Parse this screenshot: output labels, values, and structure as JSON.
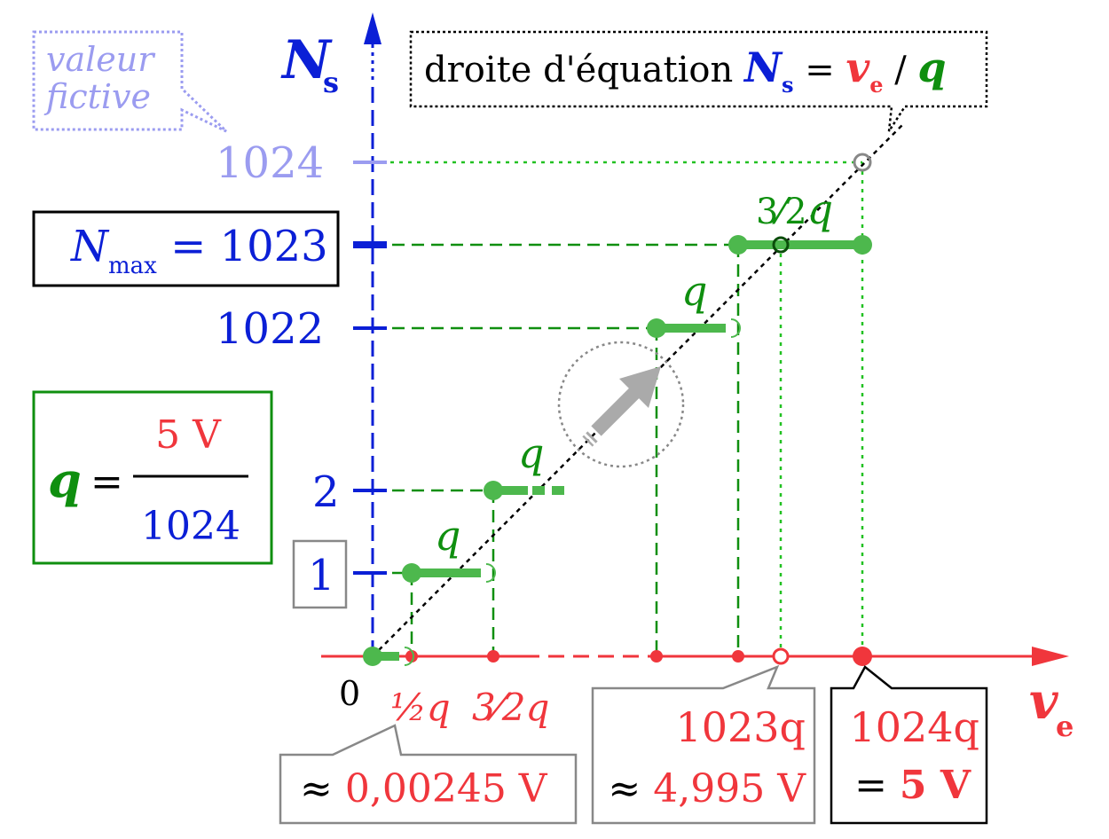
{
  "axes": {
    "y_symbol": "N",
    "y_subscript": "s",
    "x_symbol": "v",
    "x_subscript": "e",
    "origin": "0"
  },
  "note_fictive": {
    "line1": "valeur",
    "line2": "fictive"
  },
  "equation_box": {
    "prefix": "droite d'équation ",
    "n": "N",
    "n_sub": "s",
    "eq": " = ",
    "v": "v",
    "v_sub": "e",
    "slash": " / ",
    "q": "q"
  },
  "y_ticks": {
    "t1024": "1024",
    "t1022": "1022",
    "t2": "2",
    "t1": "1"
  },
  "nmax_box": {
    "n": "N",
    "sub": "max",
    "value": " = 1023"
  },
  "q_box": {
    "q": "q",
    "eq": "=",
    "numerator": "5 V",
    "denominator": "1024"
  },
  "step_labels": {
    "q1": "q",
    "q2": "q",
    "q3": "q",
    "q4_prefix": "3⁄2",
    "q4": "q"
  },
  "x_labels": {
    "half_q": "½q",
    "three_half_q": "3⁄2q"
  },
  "callout_left": {
    "approx": "≈ ",
    "value": "0,00245 V"
  },
  "callout_mid": {
    "line1": "1023q",
    "approx": "≈ ",
    "value": "4,995 V"
  },
  "callout_right": {
    "line1": "1024q",
    "eq": "= ",
    "value": "5 V"
  },
  "colors": {
    "blue": "#0b1fd6",
    "red": "#f0363c",
    "green": "#0f8f0f",
    "point_green": "#4db84d",
    "light_blue": "#9b9cf0",
    "gray": "#888888"
  }
}
